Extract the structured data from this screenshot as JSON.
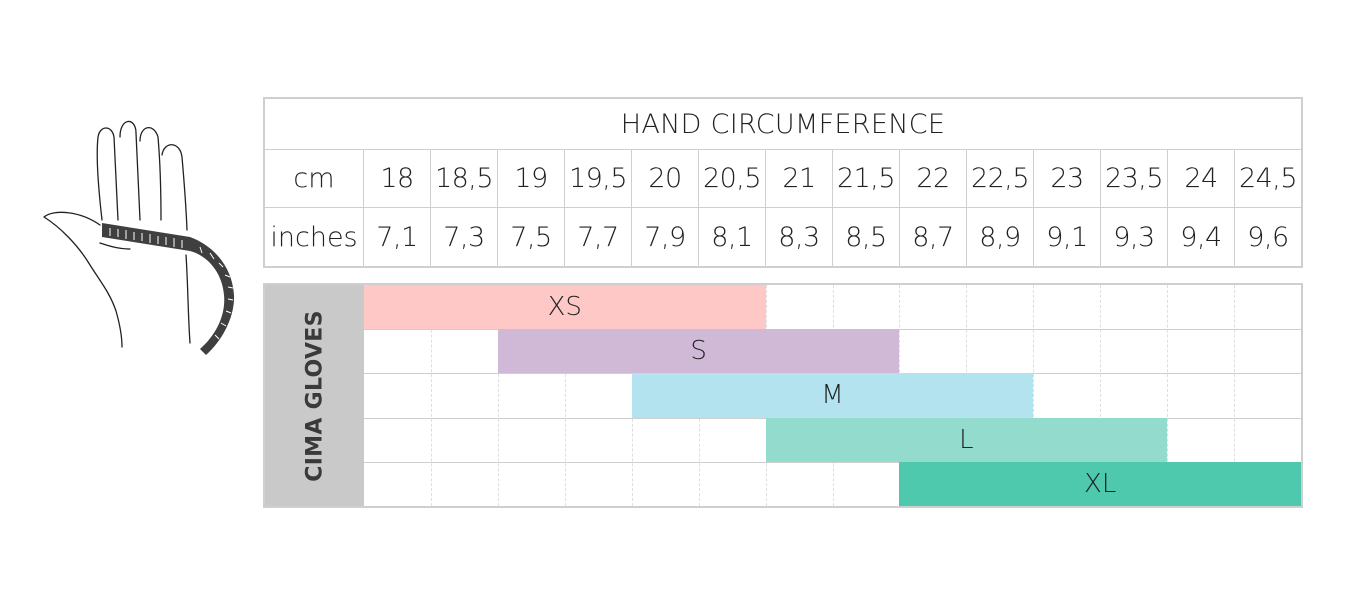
{
  "table": {
    "title": "HAND CIRCUMFERENCE",
    "cm_label": "cm",
    "inches_label": "inches",
    "cm": [
      "18",
      "18,5",
      "19",
      "19,5",
      "20",
      "20,5",
      "21",
      "21,5",
      "22",
      "22,5",
      "23",
      "23,5",
      "24",
      "24,5"
    ],
    "inches": [
      "7,1",
      "7,3",
      "7,5",
      "7,7",
      "7,9",
      "8,1",
      "8,3",
      "8,5",
      "8,7",
      "8,9",
      "9,1",
      "9,3",
      "9,4",
      "9,6"
    ]
  },
  "sizes": {
    "brand": "CIMA GLOVES",
    "items": [
      {
        "label": "XS",
        "from_cm": "18",
        "to_cm": "20,5",
        "color": "#fdc8c6"
      },
      {
        "label": "S",
        "from_cm": "19",
        "to_cm": "21,5",
        "color": "#d0b9d6"
      },
      {
        "label": "M",
        "from_cm": "20",
        "to_cm": "22,5",
        "color": "#b3e3ef"
      },
      {
        "label": "L",
        "from_cm": "21",
        "to_cm": "23,5",
        "color": "#93dbcd"
      },
      {
        "label": "XL",
        "from_cm": "22",
        "to_cm": "24,5",
        "color": "#4ec9ae"
      }
    ]
  },
  "illustration": {
    "icon": "hand-measuring-tape-icon"
  }
}
